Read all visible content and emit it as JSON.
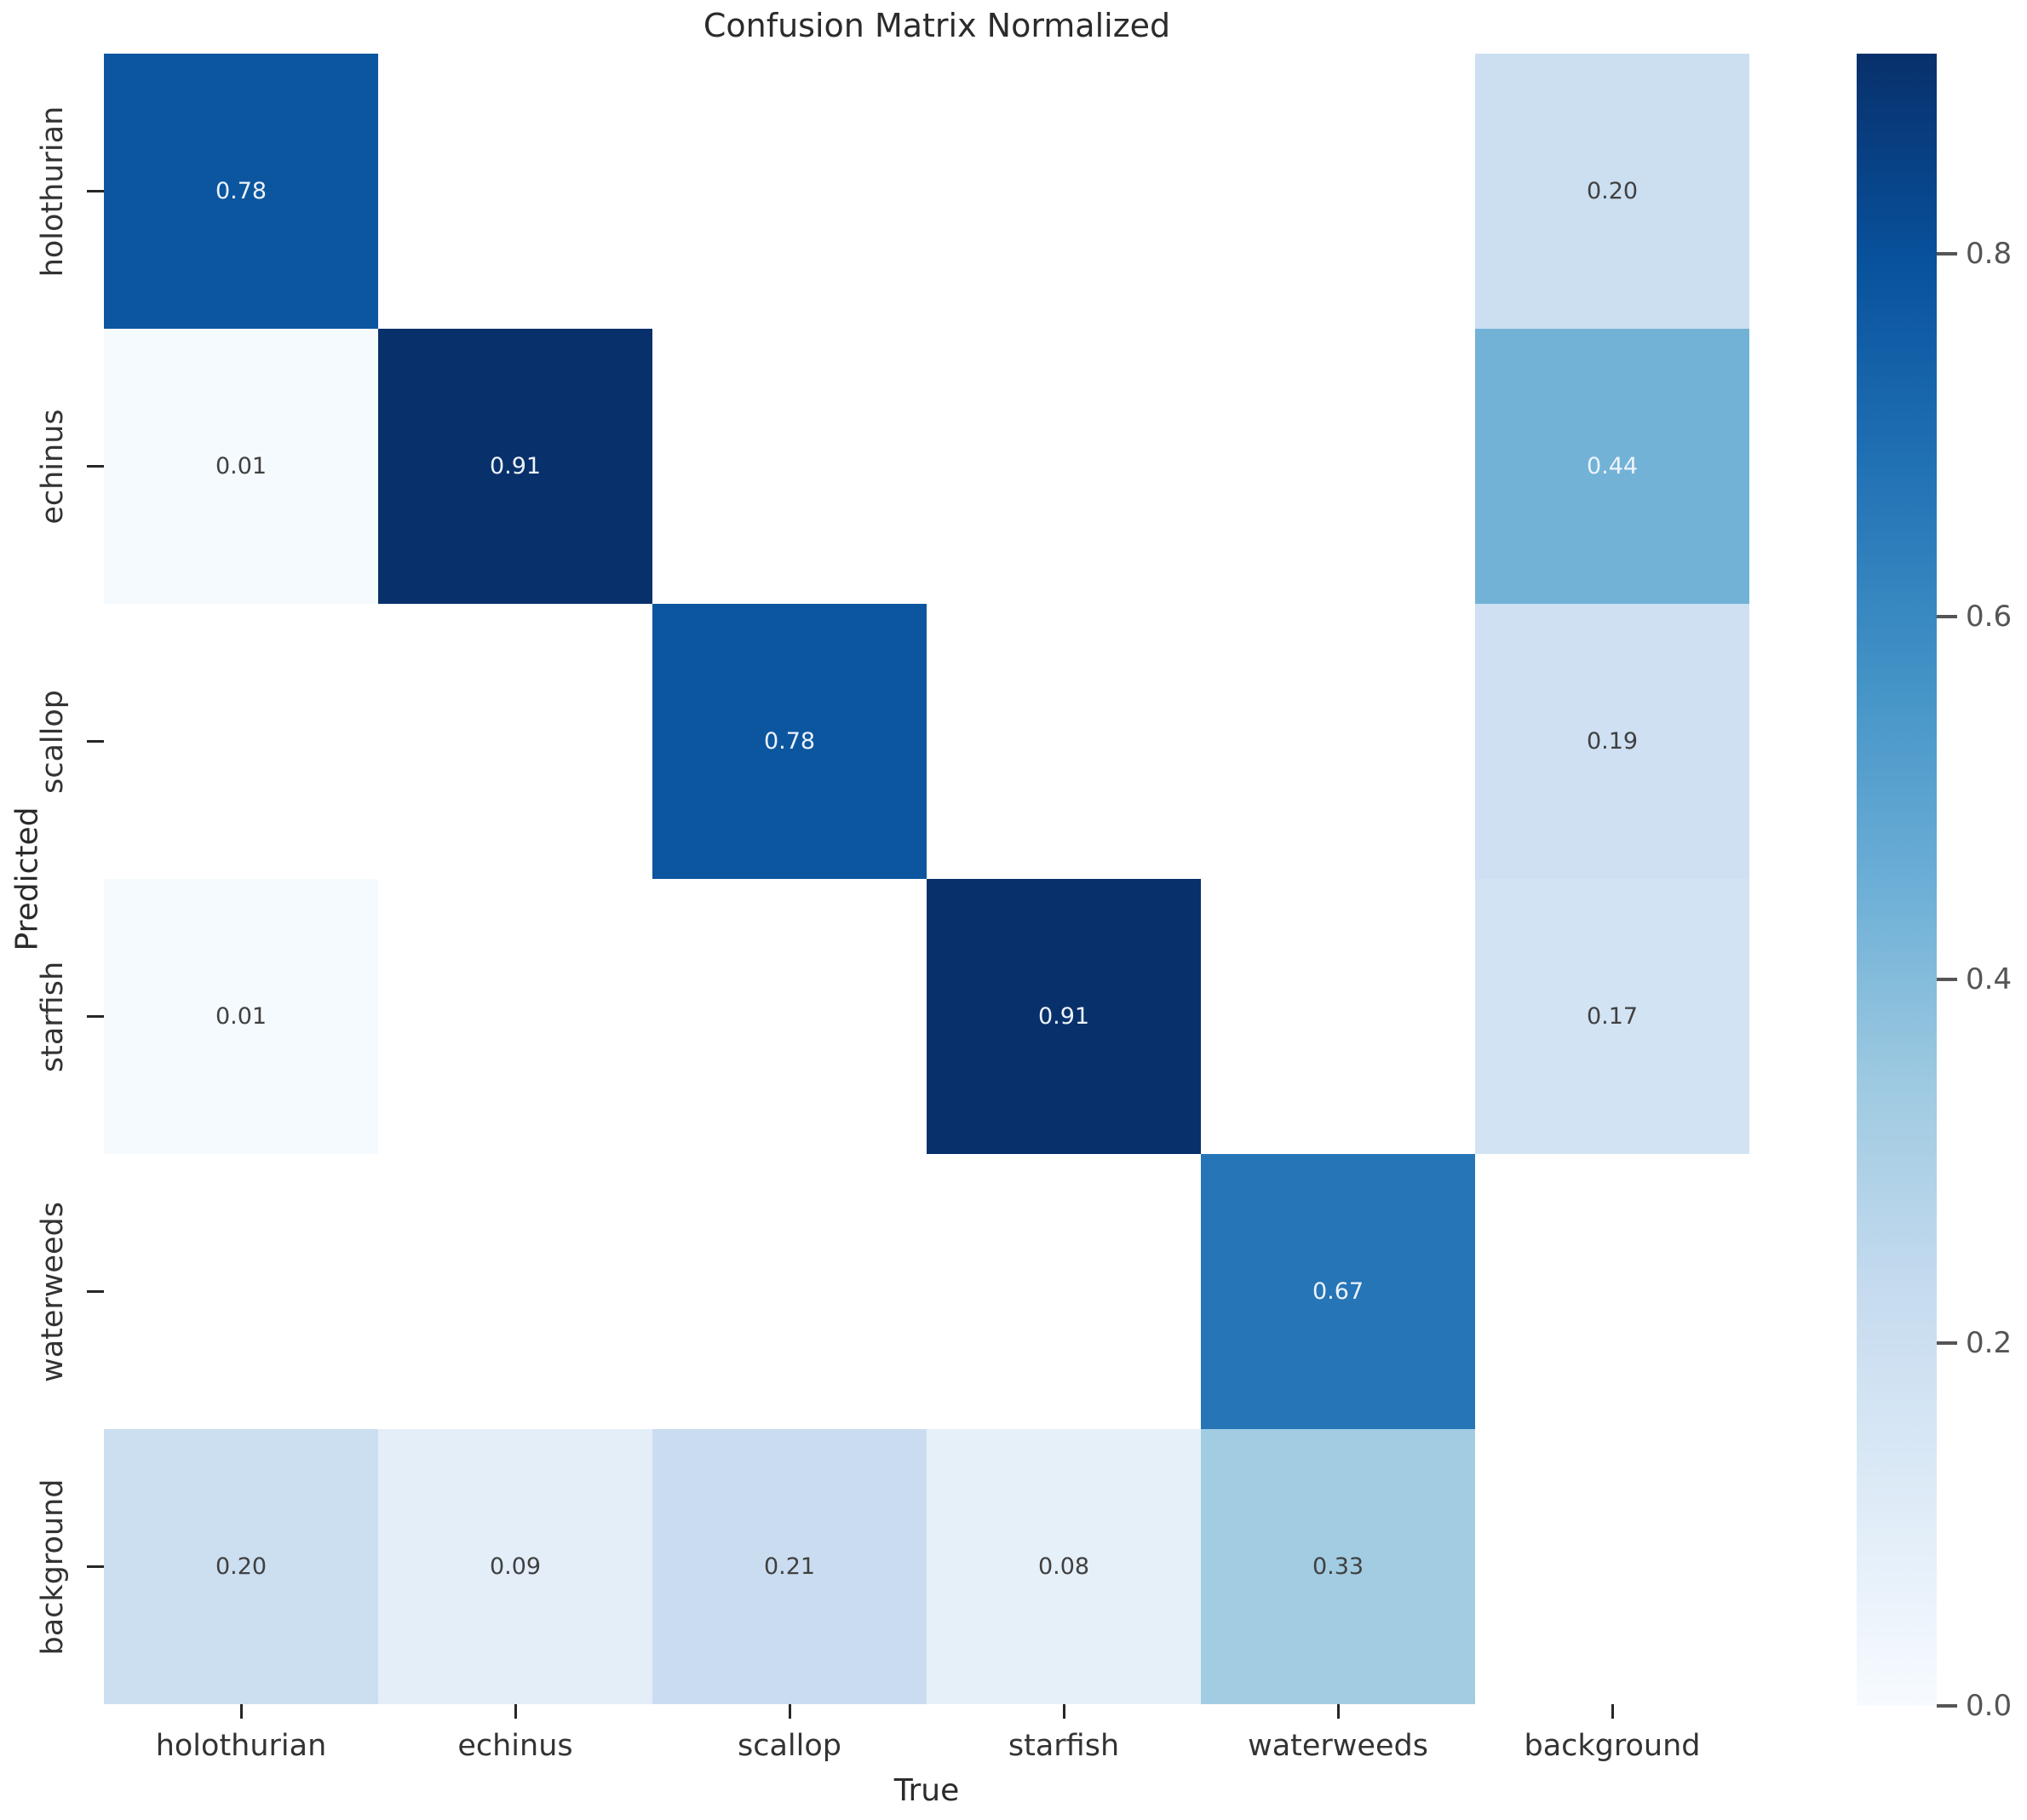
{
  "title": "Confusion Matrix Normalized",
  "chart_data": {
    "type": "heatmap",
    "title": "Confusion Matrix Normalized",
    "xlabel": "True",
    "ylabel": "Predicted",
    "x_categories": [
      "holothurian",
      "echinus",
      "scallop",
      "starfish",
      "waterweeds",
      "background"
    ],
    "y_categories": [
      "holothurian",
      "echinus",
      "scallop",
      "starfish",
      "waterweeds",
      "background"
    ],
    "matrix": [
      [
        0.78,
        null,
        null,
        null,
        null,
        0.2
      ],
      [
        0.01,
        0.91,
        null,
        null,
        null,
        0.44
      ],
      [
        null,
        null,
        0.78,
        null,
        null,
        0.19
      ],
      [
        0.01,
        null,
        null,
        0.91,
        null,
        0.17
      ],
      [
        null,
        null,
        null,
        null,
        0.67,
        null
      ],
      [
        0.2,
        0.09,
        0.21,
        0.08,
        0.33,
        null
      ]
    ],
    "vmin": 0.0,
    "vmax": 0.91,
    "colormap": "Blues",
    "colormap_anchors": [
      "#f7fbff",
      "#deebf7",
      "#c6dbef",
      "#9ecae1",
      "#6baed6",
      "#4292c6",
      "#2171b5",
      "#08519c",
      "#08306b"
    ],
    "empty_cell_color": "#ffffff",
    "annotation_light_color": "#eef3fa",
    "annotation_dark_color": "#404040",
    "colorbar_ticks": [
      "0.8",
      "0.6",
      "0.4",
      "0.2",
      "0.0"
    ],
    "legend_position": "right-colorbar",
    "grid": false
  }
}
